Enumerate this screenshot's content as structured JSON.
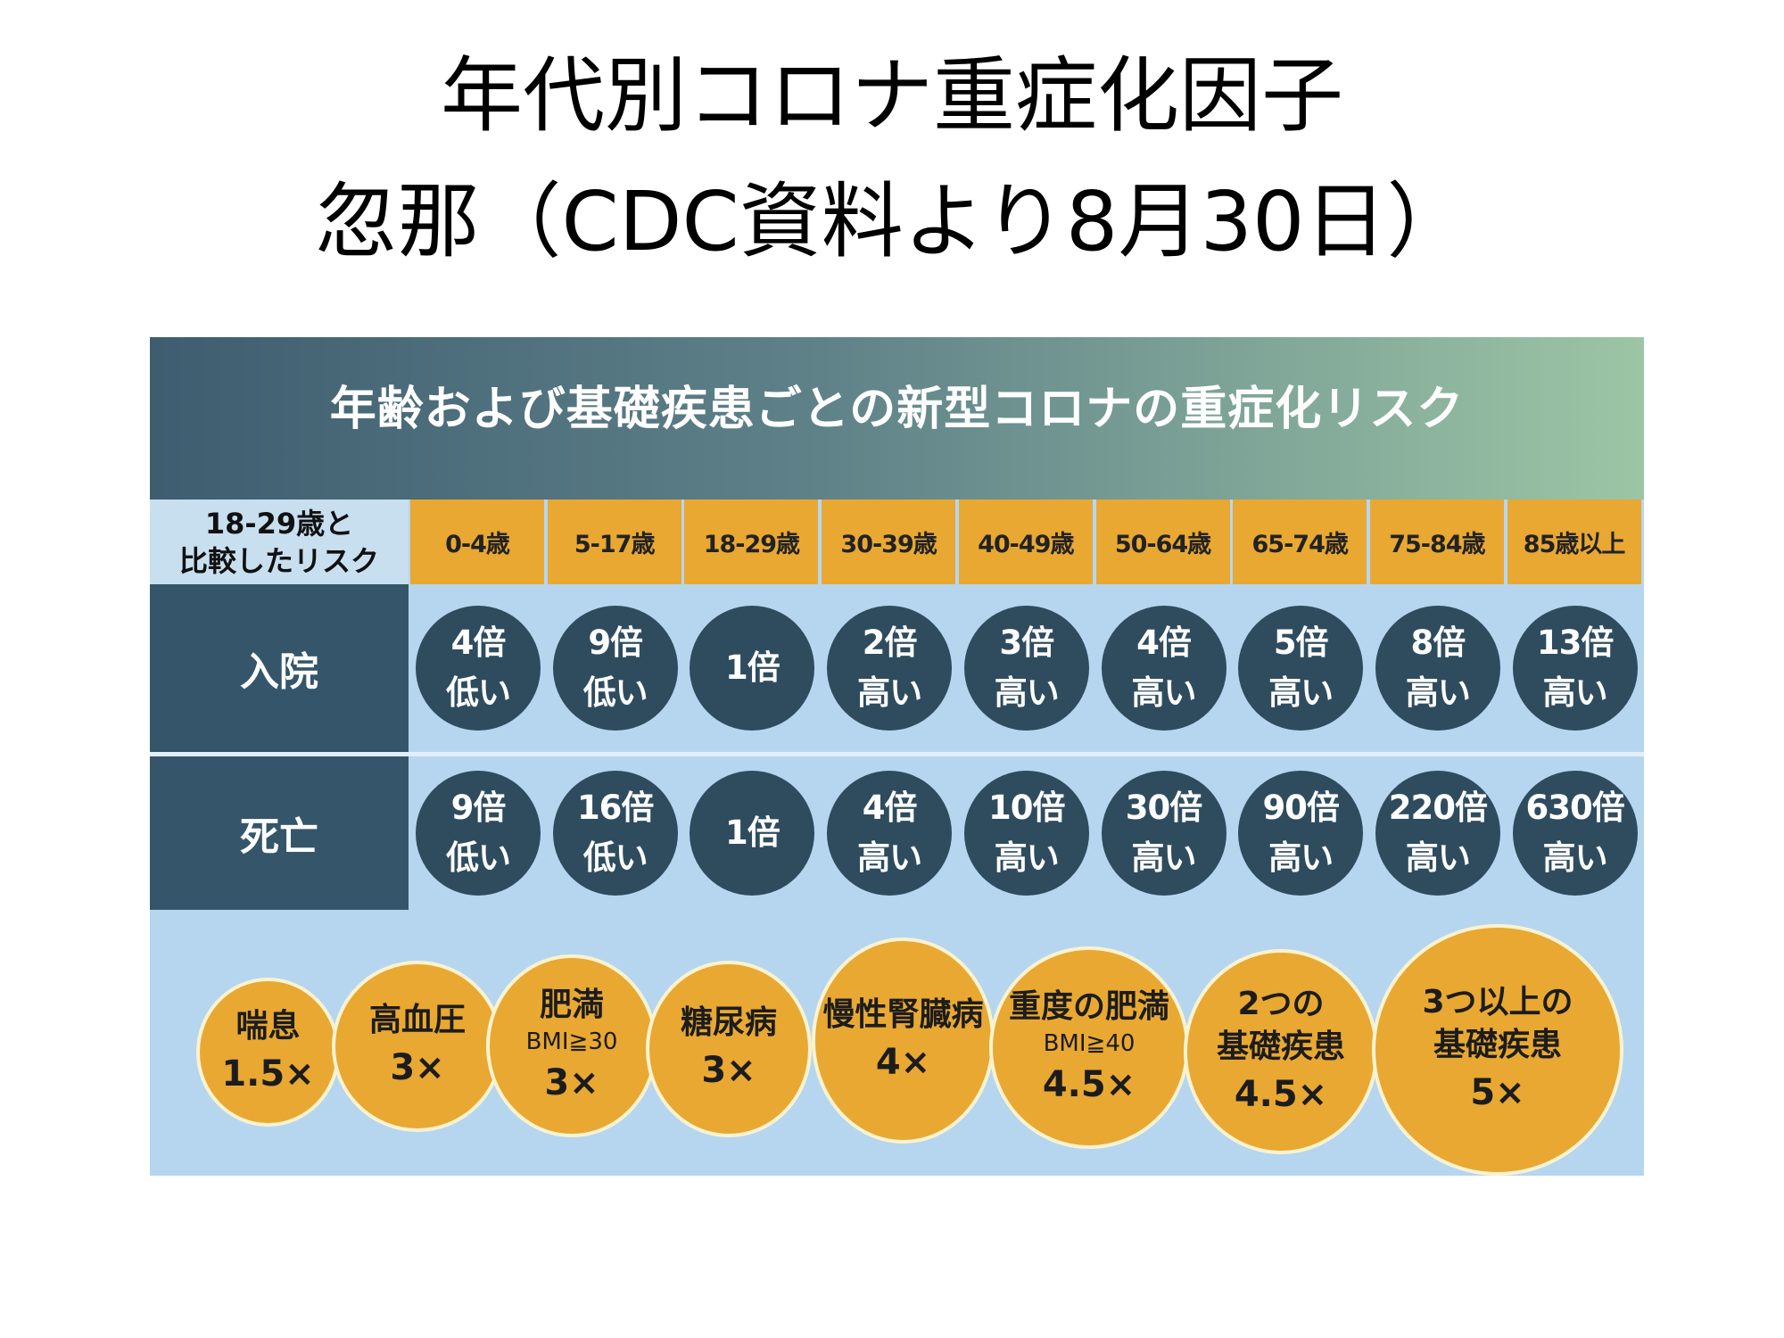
{
  "slide": {
    "title_line1": "年代別コロナ重症化因子",
    "title_line2": "忽那（CDC資料より8月30日）"
  },
  "table": {
    "heading": "年齢および基礎疾患ごとの新型コロナの重症化リスク",
    "corner_line1": "18-29歳と",
    "corner_line2": "比較したリスク",
    "ages": [
      "0-4歳",
      "5-17歳",
      "18-29歳",
      "30-39歳",
      "40-49歳",
      "50-64歳",
      "65-74歳",
      "75-84歳",
      "85歳以上"
    ],
    "rows": [
      {
        "label": "入院",
        "cells": [
          {
            "value": "4倍",
            "dir": "低い"
          },
          {
            "value": "9倍",
            "dir": "低い"
          },
          {
            "value": "1倍",
            "dir": ""
          },
          {
            "value": "2倍",
            "dir": "高い"
          },
          {
            "value": "3倍",
            "dir": "高い"
          },
          {
            "value": "4倍",
            "dir": "高い"
          },
          {
            "value": "5倍",
            "dir": "高い"
          },
          {
            "value": "8倍",
            "dir": "高い"
          },
          {
            "value": "13倍",
            "dir": "高い"
          }
        ]
      },
      {
        "label": "死亡",
        "cells": [
          {
            "value": "9倍",
            "dir": "低い"
          },
          {
            "value": "16倍",
            "dir": "低い"
          },
          {
            "value": "1倍",
            "dir": ""
          },
          {
            "value": "4倍",
            "dir": "高い"
          },
          {
            "value": "10倍",
            "dir": "高い"
          },
          {
            "value": "30倍",
            "dir": "高い"
          },
          {
            "value": "90倍",
            "dir": "高い"
          },
          {
            "value": "220倍",
            "dir": "高い"
          },
          {
            "value": "630倍",
            "dir": "高い"
          }
        ]
      }
    ]
  },
  "conditions": [
    {
      "name": "喘息",
      "sub": "",
      "mult": "1.5×"
    },
    {
      "name": "高血圧",
      "sub": "",
      "mult": "3×"
    },
    {
      "name": "肥満",
      "sub": "BMI≧30",
      "mult": "3×"
    },
    {
      "name": "糖尿病",
      "sub": "",
      "mult": "3×"
    },
    {
      "name": "慢性腎臓病",
      "sub": "",
      "mult": "4×"
    },
    {
      "name": "重度の肥満",
      "sub": "BMI≧40",
      "mult": "4.5×"
    },
    {
      "name": "2つの\n基礎疾患",
      "sub": "",
      "mult": "4.5×"
    },
    {
      "name": "3つ以上の\n基礎疾患",
      "sub": "",
      "mult": "5×"
    }
  ],
  "colors": {
    "orange": "#e8a832",
    "navy": "#2f4c5f",
    "lightblue": "#b6d6f0"
  }
}
